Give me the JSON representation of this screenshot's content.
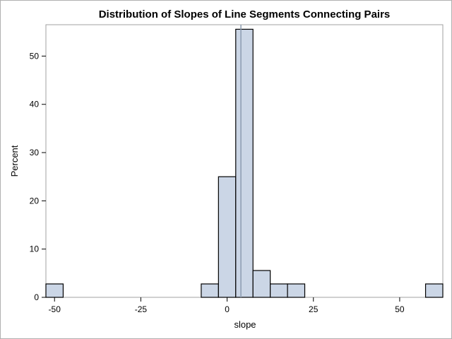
{
  "chart_data": {
    "type": "bar",
    "title": "Distribution of Slopes of Line Segments Connecting Pairs",
    "xlabel": "slope",
    "ylabel": "Percent",
    "xlim": [
      -52.5,
      62.5
    ],
    "ylim": [
      0,
      56.5
    ],
    "bin_width": 5,
    "bin_centers": [
      -50,
      -45,
      -40,
      -35,
      -30,
      -25,
      -20,
      -15,
      -10,
      -5,
      0,
      5,
      10,
      15,
      20,
      25,
      30,
      35,
      40,
      45,
      50,
      55,
      60
    ],
    "values": [
      2.78,
      0,
      0,
      0,
      0,
      0,
      0,
      0,
      0,
      2.78,
      25.0,
      55.56,
      5.56,
      2.78,
      2.78,
      0,
      0,
      0,
      0,
      0,
      0,
      0,
      2.78
    ],
    "x_ticks": [
      -50,
      -25,
      0,
      25,
      50
    ],
    "x_tick_labels": [
      "-50",
      "-25",
      "0",
      "25",
      "50"
    ],
    "y_ticks": [
      0,
      10,
      20,
      30,
      40,
      50
    ],
    "y_tick_labels": [
      "0",
      "10",
      "20",
      "30",
      "40",
      "50"
    ],
    "reference_line_x": 4.0,
    "bar_fill": "#cbd6e6",
    "bar_stroke": "#000000",
    "reference_line_color": "#8c9cb0",
    "grid": false,
    "legend": "none"
  }
}
